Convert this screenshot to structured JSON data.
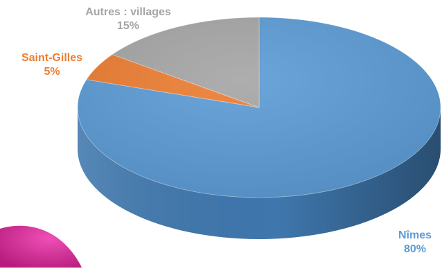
{
  "chart_data": {
    "type": "pie",
    "style": "3d",
    "start_angle_deg": 0,
    "direction": "clockwise",
    "slices": [
      {
        "label": "Nîmes",
        "value": 80,
        "value_label": "80%",
        "color": "#5B9BD5",
        "side_color": "#3F77AD",
        "label_color": "#5B9BD5"
      },
      {
        "label": "Saint-Gilles",
        "value": 5,
        "value_label": "5%",
        "color": "#ED7D31",
        "side_color": "#C0601E",
        "label_color": "#ED7D31"
      },
      {
        "label": "Autres : villages",
        "value": 15,
        "value_label": "15%",
        "color": "#A5A5A5",
        "side_color": "#7F7F7F",
        "label_color": "#A5A5A5"
      }
    ],
    "legend": "none",
    "decoration_color": "#D9339B"
  }
}
